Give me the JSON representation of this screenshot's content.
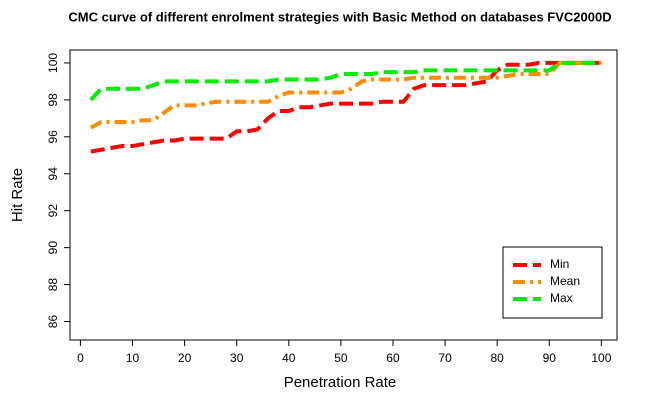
{
  "chart_data": {
    "type": "line",
    "title": "CMC curve of different enrolment strategies with Basic Method on databases FVC2000D",
    "xlabel": "Penetration Rate",
    "ylabel": "Hit Rate",
    "x": [
      2,
      4,
      6,
      8,
      10,
      12,
      14,
      16,
      18,
      20,
      22,
      24,
      26,
      28,
      30,
      32,
      34,
      36,
      38,
      40,
      42,
      44,
      46,
      48,
      50,
      52,
      54,
      56,
      58,
      60,
      62,
      64,
      66,
      68,
      70,
      72,
      74,
      76,
      78,
      80,
      82,
      84,
      86,
      88,
      90,
      92,
      94,
      96,
      98,
      100
    ],
    "series": [
      {
        "name": "Min",
        "color": "#ff0000",
        "dash": "14 6",
        "values": [
          95.2,
          95.3,
          95.4,
          95.5,
          95.5,
          95.6,
          95.7,
          95.8,
          95.8,
          95.9,
          95.9,
          95.9,
          95.9,
          95.9,
          96.3,
          96.3,
          96.4,
          97.0,
          97.4,
          97.4,
          97.6,
          97.6,
          97.7,
          97.8,
          97.8,
          97.8,
          97.8,
          97.8,
          97.9,
          97.9,
          97.9,
          98.6,
          98.8,
          98.8,
          98.8,
          98.8,
          98.8,
          98.9,
          99.0,
          99.6,
          99.9,
          99.9,
          99.9,
          100,
          100,
          100,
          100,
          100,
          100,
          100
        ]
      },
      {
        "name": "Mean",
        "color": "#ff8c00",
        "dash": "12 5 3 5",
        "values": [
          96.5,
          96.8,
          96.8,
          96.8,
          96.8,
          96.9,
          96.9,
          97.3,
          97.7,
          97.7,
          97.7,
          97.8,
          97.9,
          97.9,
          97.9,
          97.9,
          97.9,
          97.9,
          98.2,
          98.4,
          98.4,
          98.4,
          98.4,
          98.4,
          98.4,
          98.6,
          99.0,
          99.1,
          99.1,
          99.1,
          99.1,
          99.2,
          99.2,
          99.2,
          99.2,
          99.2,
          99.2,
          99.2,
          99.2,
          99.2,
          99.3,
          99.4,
          99.4,
          99.4,
          99.4,
          100,
          100,
          100,
          100,
          100
        ]
      },
      {
        "name": "Max",
        "color": "#00ee00",
        "dash": "14 6",
        "values": [
          98.0,
          98.6,
          98.6,
          98.6,
          98.6,
          98.6,
          98.8,
          99.0,
          99.0,
          99.0,
          99.0,
          99.0,
          99.0,
          99.0,
          99.0,
          99.0,
          99.0,
          99.0,
          99.1,
          99.1,
          99.1,
          99.1,
          99.1,
          99.2,
          99.4,
          99.4,
          99.4,
          99.4,
          99.5,
          99.5,
          99.5,
          99.5,
          99.6,
          99.6,
          99.6,
          99.6,
          99.6,
          99.6,
          99.6,
          99.6,
          99.6,
          99.6,
          99.6,
          99.6,
          99.6,
          100,
          100,
          100,
          100,
          100
        ]
      }
    ],
    "xlim": [
      -2,
      103
    ],
    "ylim": [
      85,
      100.7
    ],
    "xticks": [
      0,
      10,
      20,
      30,
      40,
      50,
      60,
      70,
      80,
      90,
      100
    ],
    "yticks": [
      86,
      88,
      90,
      92,
      94,
      96,
      98,
      100
    ],
    "legend": "bottomright"
  }
}
